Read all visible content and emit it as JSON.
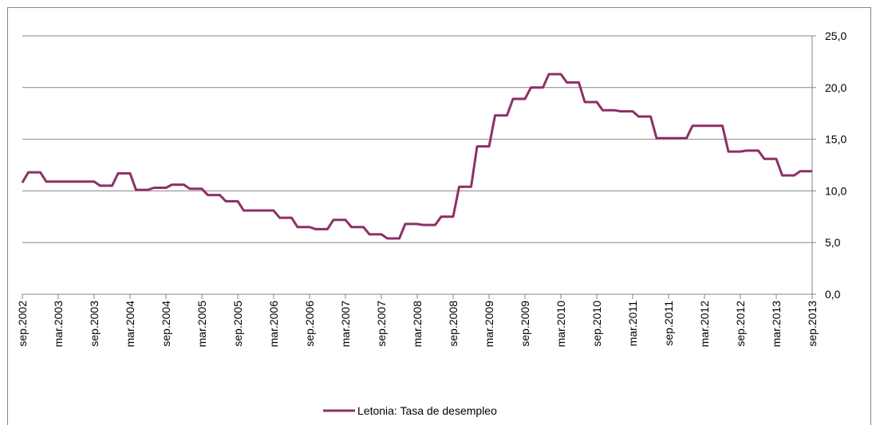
{
  "chart_data": {
    "type": "line",
    "categories": [
      "sep.2002",
      null,
      null,
      null,
      null,
      null,
      "mar.2003",
      null,
      null,
      null,
      null,
      null,
      "sep.2003",
      null,
      null,
      null,
      null,
      null,
      "mar.2004",
      null,
      null,
      null,
      null,
      null,
      "sep.2004",
      null,
      null,
      null,
      null,
      null,
      "mar.2005",
      null,
      null,
      null,
      null,
      null,
      "sep.2005",
      null,
      null,
      null,
      null,
      null,
      "mar.2006",
      null,
      null,
      null,
      null,
      null,
      "sep.2006",
      null,
      null,
      null,
      null,
      null,
      "mar.2007",
      null,
      null,
      null,
      null,
      null,
      "sep.2007",
      null,
      null,
      null,
      null,
      null,
      "mar.2008",
      null,
      null,
      null,
      null,
      null,
      "sep.2008",
      null,
      null,
      null,
      null,
      null,
      "mar.2009",
      null,
      null,
      null,
      null,
      null,
      "sep.2009",
      null,
      null,
      null,
      null,
      null,
      "mar.2010",
      null,
      null,
      null,
      null,
      null,
      "sep.2010",
      null,
      null,
      null,
      null,
      null,
      "mar.2011",
      null,
      null,
      null,
      null,
      null,
      "sep.2011",
      null,
      null,
      null,
      null,
      null,
      "mar.2012",
      null,
      null,
      null,
      null,
      null,
      "sep.2012",
      null,
      null,
      null,
      null,
      null,
      "mar.2013",
      null,
      null,
      null,
      null,
      null,
      "sep.2013"
    ],
    "series": [
      {
        "name": "Letonia: Tasa de desempleo",
        "color": "#8e2f66",
        "values": [
          10.8,
          11.8,
          11.8,
          11.8,
          10.9,
          10.9,
          10.9,
          10.9,
          10.9,
          10.9,
          10.9,
          10.9,
          10.9,
          10.5,
          10.5,
          10.5,
          11.7,
          11.7,
          11.7,
          10.1,
          10.1,
          10.1,
          10.3,
          10.3,
          10.3,
          10.6,
          10.6,
          10.6,
          10.2,
          10.2,
          10.2,
          9.6,
          9.6,
          9.6,
          9.0,
          9.0,
          9.0,
          8.1,
          8.1,
          8.1,
          8.1,
          8.1,
          8.1,
          7.4,
          7.4,
          7.4,
          6.5,
          6.5,
          6.5,
          6.3,
          6.3,
          6.3,
          7.2,
          7.2,
          7.2,
          6.5,
          6.5,
          6.5,
          5.8,
          5.8,
          5.8,
          5.4,
          5.4,
          5.4,
          6.8,
          6.8,
          6.8,
          6.7,
          6.7,
          6.7,
          7.5,
          7.5,
          7.5,
          10.4,
          10.4,
          10.4,
          14.3,
          14.3,
          14.3,
          17.3,
          17.3,
          17.3,
          18.9,
          18.9,
          18.9,
          20.0,
          20.0,
          20.0,
          21.3,
          21.3,
          21.3,
          20.5,
          20.5,
          20.5,
          18.6,
          18.6,
          18.6,
          17.8,
          17.8,
          17.8,
          17.7,
          17.7,
          17.7,
          17.2,
          17.2,
          17.2,
          15.1,
          15.1,
          15.1,
          15.1,
          15.1,
          15.1,
          16.3,
          16.3,
          16.3,
          16.3,
          16.3,
          16.3,
          13.8,
          13.8,
          13.8,
          13.9,
          13.9,
          13.9,
          13.1,
          13.1,
          13.1,
          11.5,
          11.5,
          11.5,
          11.9,
          11.9,
          11.9
        ]
      }
    ],
    "ylim": [
      0,
      25
    ],
    "yticks": [
      {
        "value": 0,
        "label": "0,0"
      },
      {
        "value": 5,
        "label": "5,0"
      },
      {
        "value": 10,
        "label": "10,0"
      },
      {
        "value": 15,
        "label": "15,0"
      },
      {
        "value": 20,
        "label": "20,0"
      },
      {
        "value": 25,
        "label": "25,0"
      }
    ],
    "grid": true,
    "legend": "bottom"
  }
}
